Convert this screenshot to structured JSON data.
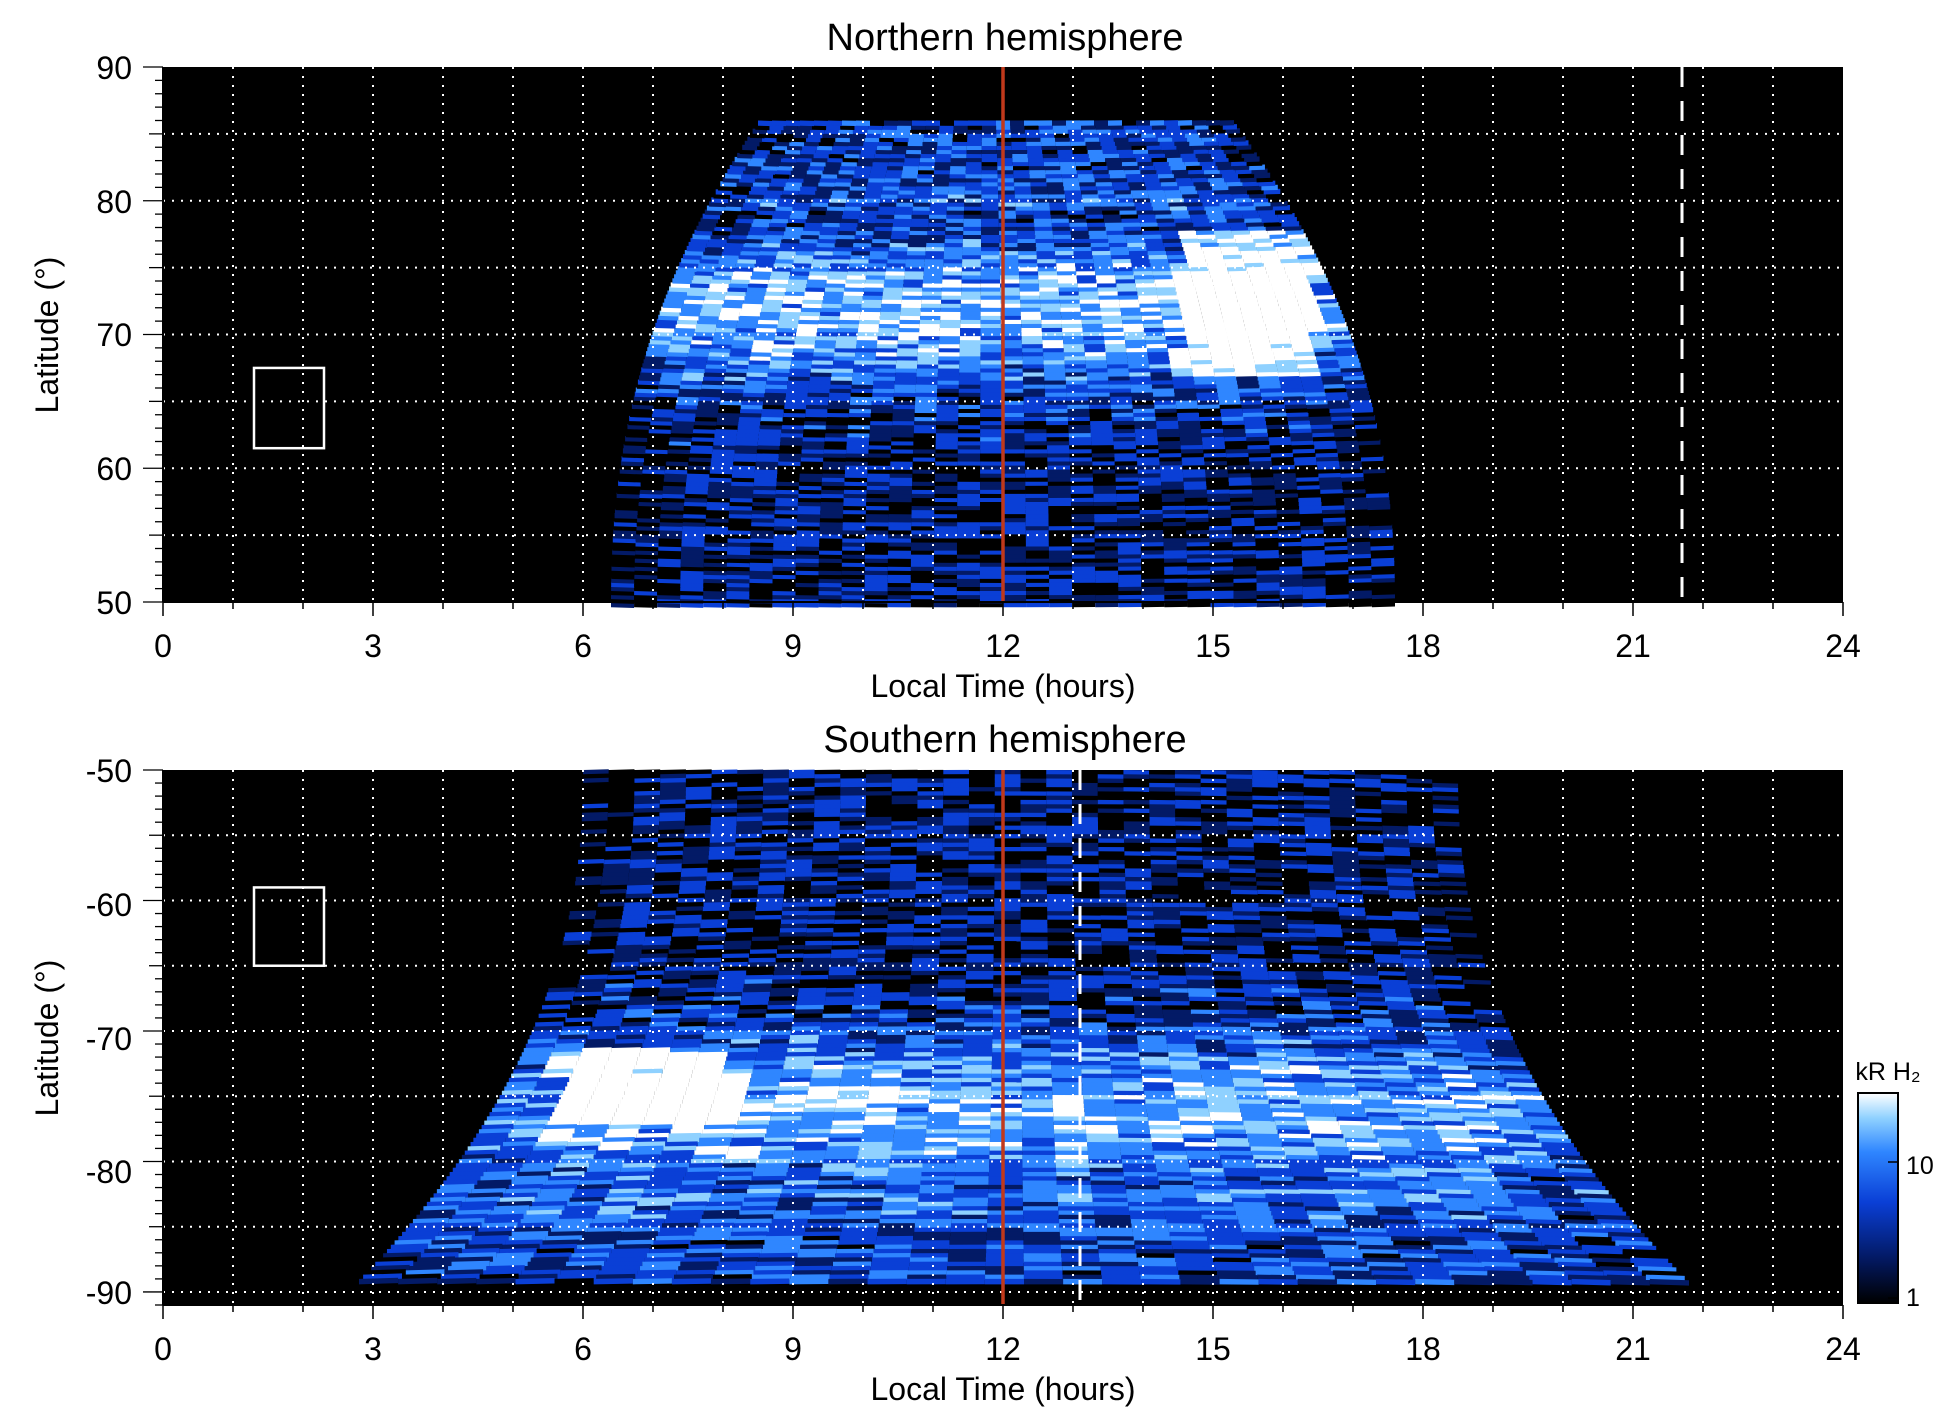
{
  "chart_data": [
    {
      "type": "heatmap",
      "title": "Northern hemisphere",
      "xlabel": "Local Time (hours)",
      "ylabel": "Latitude (°)",
      "xlim": [
        0,
        24
      ],
      "ylim": [
        50,
        90
      ],
      "xticks": [
        "0",
        "3",
        "6",
        "9",
        "12",
        "15",
        "18",
        "21",
        "24"
      ],
      "yticks": [
        "90",
        "80",
        "70",
        "60",
        "50"
      ],
      "grid": true,
      "noon_line_lt": 12,
      "noon_line_color": "#c0391b",
      "dashed_line_lt": 21.7,
      "marker_box": {
        "lt": [
          1.3,
          2.3
        ],
        "lat": [
          61.5,
          67.5
        ]
      },
      "emission_region": {
        "pole_side": "top",
        "lt_range_at_edge": [
          6.4,
          17.6
        ],
        "lt_range_at_limit": [
          8.5,
          15.3
        ],
        "limit_lat": 86,
        "oval_lat": 72,
        "brightest_patch": {
          "lt": [
            14.5,
            16.5
          ],
          "lat": [
            67,
            78
          ]
        }
      }
    },
    {
      "type": "heatmap",
      "title": "Southern hemisphere",
      "xlabel": "Local Time (hours)",
      "ylabel": "Latitude (°)",
      "xlim": [
        0,
        24
      ],
      "ylim": [
        -91,
        -50
      ],
      "xticks": [
        "0",
        "3",
        "6",
        "9",
        "12",
        "15",
        "18",
        "21",
        "24"
      ],
      "yticks": [
        "-50",
        "-60",
        "-70",
        "-80",
        "-90"
      ],
      "grid": true,
      "noon_line_lt": 12,
      "noon_line_color": "#c0391b",
      "dashed_line_lt": 13.1,
      "marker_box": {
        "lt": [
          1.3,
          2.3
        ],
        "lat": [
          -65,
          -59
        ]
      },
      "emission_region": {
        "pole_side": "bottom",
        "lt_range_at_edge": [
          6.0,
          18.5
        ],
        "lt_range_at_limit": [
          2.8,
          21.8
        ],
        "limit_lat": -89,
        "oval_lat": -76,
        "brightest_patch": {
          "lt": [
            5.6,
            8.2
          ],
          "lat": [
            -77,
            -71
          ]
        }
      }
    }
  ],
  "colorbar": {
    "label": "kR H₂",
    "ticks": [
      "10",
      "1"
    ],
    "scale": "log",
    "colors": [
      "#000000",
      "#031a66",
      "#0a3fd6",
      "#2f86ff",
      "#8fd1ff",
      "#ffffff"
    ]
  }
}
